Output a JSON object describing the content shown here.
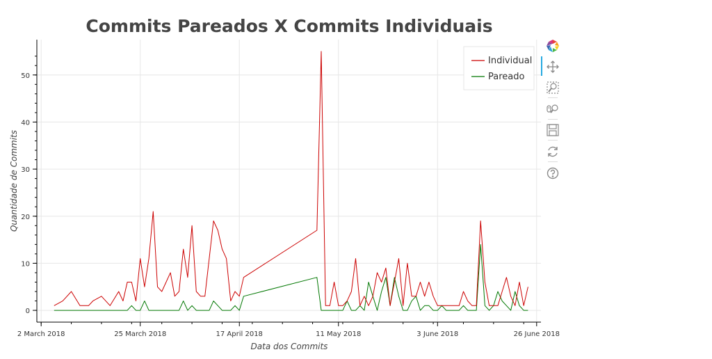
{
  "chart_data": {
    "type": "line",
    "title": "Commits Pareados X Commits Individuais",
    "xlabel": "Data dos Commits",
    "ylabel": "Quantidade de Commits",
    "x_tick_labels": [
      "2 March 2018",
      "25 March 2018",
      "17 April 2018",
      "11 May 2018",
      "3 June 2018",
      "26 June 2018"
    ],
    "y_tick_labels": [
      "0",
      "10",
      "20",
      "30",
      "40",
      "50"
    ],
    "xlim": [
      "2018-03-01",
      "2018-06-26"
    ],
    "ylim": [
      -2.5,
      57.5
    ],
    "grid": true,
    "legend_placement": "top-right",
    "series": [
      {
        "name": "Individual",
        "color": "#cc0000",
        "x": [
          "2018-03-05",
          "2018-03-07",
          "2018-03-09",
          "2018-03-11",
          "2018-03-13",
          "2018-03-14",
          "2018-03-16",
          "2018-03-18",
          "2018-03-20",
          "2018-03-21",
          "2018-03-22",
          "2018-03-23",
          "2018-03-24",
          "2018-03-25",
          "2018-03-26",
          "2018-03-27",
          "2018-03-28",
          "2018-03-29",
          "2018-03-30",
          "2018-03-31",
          "2018-04-01",
          "2018-04-02",
          "2018-04-03",
          "2018-04-04",
          "2018-04-05",
          "2018-04-06",
          "2018-04-07",
          "2018-04-08",
          "2018-04-09",
          "2018-04-10",
          "2018-04-11",
          "2018-04-12",
          "2018-04-13",
          "2018-04-14",
          "2018-04-15",
          "2018-04-16",
          "2018-04-17",
          "2018-04-18",
          "2018-05-05",
          "2018-05-06",
          "2018-05-07",
          "2018-05-08",
          "2018-05-09",
          "2018-05-10",
          "2018-05-11",
          "2018-05-12",
          "2018-05-13",
          "2018-05-14",
          "2018-05-15",
          "2018-05-16",
          "2018-05-17",
          "2018-05-18",
          "2018-05-19",
          "2018-05-20",
          "2018-05-21",
          "2018-05-22",
          "2018-05-23",
          "2018-05-24",
          "2018-05-25",
          "2018-05-26",
          "2018-05-27",
          "2018-05-28",
          "2018-05-29",
          "2018-05-30",
          "2018-05-31",
          "2018-06-01",
          "2018-06-02",
          "2018-06-03",
          "2018-06-04",
          "2018-06-05",
          "2018-06-06",
          "2018-06-07",
          "2018-06-08",
          "2018-06-09",
          "2018-06-10",
          "2018-06-11",
          "2018-06-12",
          "2018-06-13",
          "2018-06-14",
          "2018-06-15",
          "2018-06-16",
          "2018-06-17",
          "2018-06-18",
          "2018-06-19",
          "2018-06-20",
          "2018-06-21",
          "2018-06-22",
          "2018-06-23"
        ],
        "values": [
          1,
          2,
          4,
          1,
          1,
          2,
          3,
          1,
          4,
          2,
          6,
          6,
          2,
          11,
          5,
          11,
          21,
          5,
          4,
          6,
          8,
          3,
          4,
          13,
          7,
          18,
          4,
          3,
          3,
          11,
          19,
          17,
          13,
          11,
          2,
          4,
          3,
          7,
          17,
          55,
          1,
          1,
          6,
          1,
          1,
          2,
          4,
          11,
          1,
          3,
          1,
          3,
          8,
          6,
          9,
          1,
          6,
          11,
          1,
          10,
          3,
          3,
          6,
          3,
          6,
          3,
          1,
          1,
          1,
          1,
          1,
          1,
          4,
          2,
          1,
          1,
          19,
          6,
          1,
          1,
          1,
          4,
          7,
          3,
          1,
          6,
          1,
          5
        ]
      },
      {
        "name": "Pareado",
        "color": "#007700",
        "x": [
          "2018-03-05",
          "2018-03-21",
          "2018-03-22",
          "2018-03-23",
          "2018-03-24",
          "2018-03-25",
          "2018-03-26",
          "2018-03-27",
          "2018-03-28",
          "2018-03-29",
          "2018-03-30",
          "2018-03-31",
          "2018-04-01",
          "2018-04-02",
          "2018-04-03",
          "2018-04-04",
          "2018-04-05",
          "2018-04-06",
          "2018-04-07",
          "2018-04-08",
          "2018-04-09",
          "2018-04-10",
          "2018-04-11",
          "2018-04-12",
          "2018-04-13",
          "2018-04-14",
          "2018-04-15",
          "2018-04-16",
          "2018-04-17",
          "2018-04-18",
          "2018-05-05",
          "2018-05-06",
          "2018-05-07",
          "2018-05-08",
          "2018-05-09",
          "2018-05-10",
          "2018-05-11",
          "2018-05-12",
          "2018-05-13",
          "2018-05-14",
          "2018-05-15",
          "2018-05-16",
          "2018-05-17",
          "2018-05-18",
          "2018-05-19",
          "2018-05-20",
          "2018-05-21",
          "2018-05-22",
          "2018-05-23",
          "2018-05-24",
          "2018-05-25",
          "2018-05-26",
          "2018-05-27",
          "2018-05-28",
          "2018-05-29",
          "2018-05-30",
          "2018-05-31",
          "2018-06-01",
          "2018-06-02",
          "2018-06-03",
          "2018-06-04",
          "2018-06-05",
          "2018-06-06",
          "2018-06-07",
          "2018-06-08",
          "2018-06-09",
          "2018-06-10",
          "2018-06-11",
          "2018-06-12",
          "2018-06-13",
          "2018-06-14",
          "2018-06-15",
          "2018-06-16",
          "2018-06-17",
          "2018-06-18",
          "2018-06-19",
          "2018-06-20",
          "2018-06-21",
          "2018-06-22",
          "2018-06-23"
        ],
        "values": [
          0,
          0,
          0,
          1,
          0,
          0,
          2,
          0,
          0,
          0,
          0,
          0,
          0,
          0,
          0,
          2,
          0,
          1,
          0,
          0,
          0,
          0,
          2,
          1,
          0,
          0,
          0,
          1,
          0,
          3,
          7,
          0,
          0,
          0,
          0,
          0,
          0,
          2,
          0,
          0,
          1,
          0,
          6,
          3,
          0,
          4,
          7,
          1,
          7,
          3,
          0,
          0,
          2,
          3,
          0,
          1,
          1,
          0,
          0,
          1,
          0,
          0,
          0,
          0,
          1,
          0,
          0,
          0,
          14,
          1,
          0,
          1,
          4,
          2,
          1,
          0,
          4,
          1,
          0,
          0
        ]
      }
    ]
  },
  "toolbar": {
    "tools": [
      {
        "name": "bokeh-logo-icon",
        "label": "Bokeh"
      },
      {
        "name": "pan-icon",
        "label": "Pan"
      },
      {
        "name": "box-zoom-icon",
        "label": "Box Zoom"
      },
      {
        "name": "wheel-zoom-icon",
        "label": "Wheel Zoom"
      },
      {
        "name": "save-icon",
        "label": "Save"
      },
      {
        "name": "reset-icon",
        "label": "Reset"
      },
      {
        "name": "help-icon",
        "label": "Help"
      }
    ],
    "active_color": "#26aae1"
  }
}
